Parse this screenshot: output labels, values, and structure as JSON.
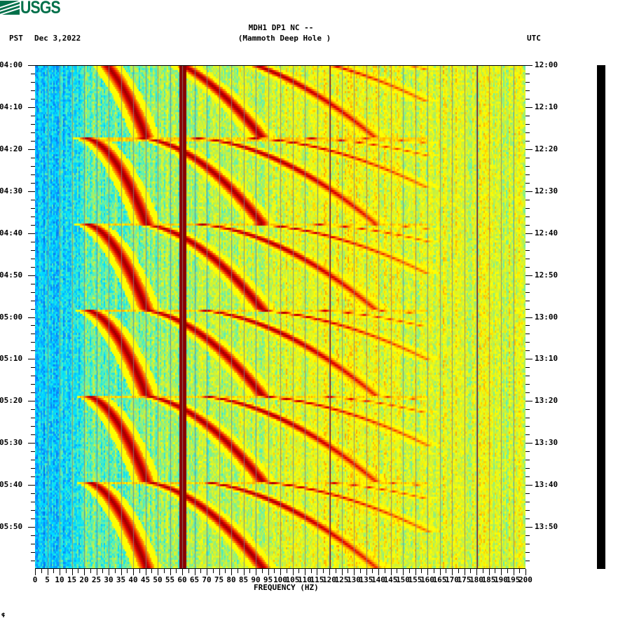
{
  "header": {
    "logo_text": "USGS",
    "station": "MDH1 DP1 NC --",
    "station_name": "(Mammoth Deep Hole )",
    "tz_left": "PST",
    "date": "Dec 3,2022",
    "tz_right": "UTC"
  },
  "footer_mark": "⸿",
  "chart_data": {
    "type": "heatmap",
    "title": "MDH1 DP1 NC -- (Mammoth Deep Hole )",
    "subtitle": "Dec 3,2022",
    "xlabel": "FREQUENCY (HZ)",
    "ylabel_left": "PST",
    "ylabel_right": "UTC",
    "xlim": [
      0,
      200
    ],
    "x_ticks": [
      0,
      5,
      10,
      15,
      20,
      25,
      30,
      35,
      40,
      45,
      50,
      55,
      60,
      65,
      70,
      75,
      80,
      85,
      90,
      95,
      100,
      105,
      110,
      115,
      120,
      125,
      130,
      135,
      140,
      145,
      150,
      155,
      160,
      165,
      170,
      175,
      180,
      185,
      190,
      195,
      200
    ],
    "x_tick_labels": [
      "0",
      "5",
      "10",
      "15",
      "20",
      "25",
      "30",
      "35",
      "40",
      "45",
      "50",
      "55",
      "60",
      "65",
      "70",
      "75",
      "80",
      "85",
      "90",
      "95",
      "100",
      "105",
      "110",
      "115",
      "120",
      "125",
      "130",
      "135",
      "140",
      "145",
      "150",
      "155",
      "160",
      "165",
      "170",
      "175",
      "180",
      "185",
      "190",
      "195",
      "200"
    ],
    "y_ticks_left": [
      "04:00",
      "04:10",
      "04:20",
      "04:30",
      "04:40",
      "04:50",
      "05:00",
      "05:10",
      "05:20",
      "05:30",
      "05:40",
      "05:50"
    ],
    "y_ticks_right": [
      "12:00",
      "12:10",
      "12:20",
      "12:30",
      "12:40",
      "12:50",
      "13:00",
      "13:10",
      "13:20",
      "13:30",
      "13:40",
      "13:50"
    ],
    "y_range_minutes": [
      0,
      120
    ],
    "minor_tick_interval_minutes": 2,
    "grid": true,
    "grid_interval_hz": 5,
    "colormap": [
      "#0050d0",
      "#0a8cff",
      "#00e0ff",
      "#60f0b0",
      "#c8f040",
      "#ffff00",
      "#ff9000",
      "#e00000",
      "#800000"
    ],
    "persistent_lines_hz": [
      60,
      120,
      180
    ],
    "sweep_period_minutes": 20.5,
    "sweep_onsets_minutes": [
      -3.5,
      17,
      37.5,
      58,
      78.5,
      99,
      119.5
    ],
    "sweep_harmonics_start_hz": [
      20,
      42,
      63,
      85,
      107,
      128
    ],
    "background_profile": "blue (low energy) below ~20 Hz, cyan/green/yellow broadband above, increasing toward 60-120 Hz"
  },
  "colorbar": {
    "color": "#000000"
  }
}
